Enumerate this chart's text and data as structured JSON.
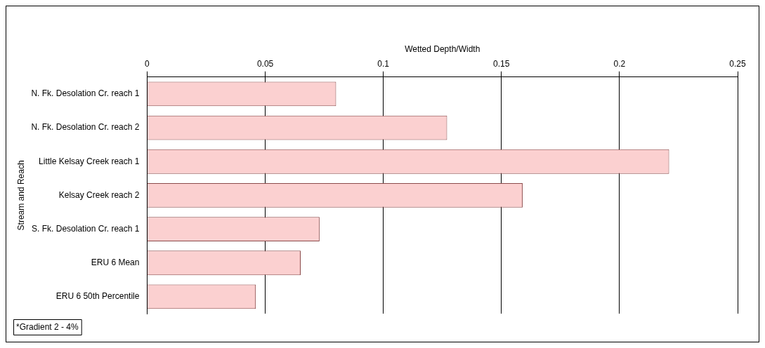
{
  "chart_data": {
    "type": "bar",
    "orientation": "horizontal",
    "xlabel": "Wetted Depth/Width",
    "ylabel": "Stream and Reach",
    "categories": [
      "N. Fk. Desolation Cr. reach 1",
      "N. Fk. Desolation Cr. reach 2",
      "Little Kelsay Creek reach 1",
      "Kelsay Creek reach 2",
      "S. Fk. Desolation Cr. reach 1",
      "ERU 6 Mean",
      "ERU 6 50th Percentile"
    ],
    "values": [
      0.08,
      0.127,
      0.221,
      0.159,
      0.073,
      0.065,
      0.046
    ],
    "color": "#fbd0d0",
    "xlim": [
      0,
      0.25
    ],
    "xticks": [
      0,
      0.05,
      0.1,
      0.15,
      0.2,
      0.25
    ],
    "grid": "x",
    "legend": false,
    "annotations": [
      "*Gradient 2 - 4%"
    ]
  }
}
